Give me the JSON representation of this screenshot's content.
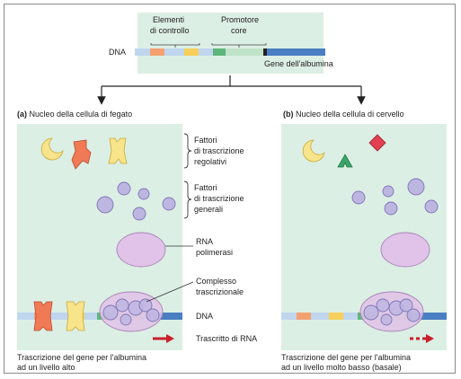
{
  "top_diagram": {
    "control_elements_label": [
      "Elementi",
      "di controllo"
    ],
    "core_promoter_label": [
      "Promotore",
      "core"
    ],
    "dna_label": "DNA",
    "albumin_gene_label": "Gene dell'albumina"
  },
  "panel_a": {
    "heading_prefix": "(a)",
    "heading": "Nucleo della cellula di fegato",
    "caption": [
      "Trascrizione del gene per l'albumina",
      "ad un livello alto"
    ]
  },
  "panel_b": {
    "heading_prefix": "(b)",
    "heading": "Nucleo della cellula di cervello",
    "caption": [
      "Trascrizione del gene per l'albumina",
      "ad un livello molto basso (basale)"
    ]
  },
  "legend": {
    "regulatory_factors": [
      "Fattori",
      "di trascrizione",
      "regolativi"
    ],
    "general_factors": [
      "Fattori",
      "di trascrizione",
      "generali"
    ],
    "rna_polymerase": [
      "RNA",
      "polimerasi"
    ],
    "transcription_complex": [
      "Complesso",
      "trascrizionale"
    ],
    "dna": "DNA",
    "rna_transcript": "Trascritto di RNA"
  },
  "colors": {
    "panel_bg": "#dcefe4",
    "dna_blue": "#4a7ec2",
    "dna_light": "#bfd6ee",
    "control_orange": "#f4a070",
    "control_yellow": "#f8cf5a",
    "core_green": "#5db67a",
    "core_light": "#bfe3c8",
    "black_marker": "#222222",
    "factor_yellow": "#f8e48a",
    "factor_orange": "#f07a56",
    "factor_green": "#3aa56a",
    "factor_red": "#e04050",
    "lavender": "#bdb6e0",
    "lavender_stroke": "#7f74b8",
    "polymerase": "#e1c2e8",
    "polymerase_stroke": "#a883b8",
    "arrow_red": "#c8202a"
  }
}
